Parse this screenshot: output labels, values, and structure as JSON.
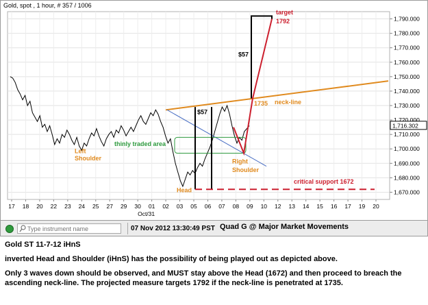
{
  "window": {
    "title": "Gold, spot , 1 hour, # 357 / 1006"
  },
  "chart_data": {
    "type": "line",
    "title": "Gold, spot , 1 hour, # 357 / 1006",
    "xlabel": "",
    "ylabel": "",
    "ylim": [
      1665,
      1795
    ],
    "yticks": [
      "1,670.000",
      "1,680.000",
      "1,690.000",
      "1,700.000",
      "1,710.000",
      "1,720.000",
      "1,730.000",
      "1,740.000",
      "1,750.000",
      "1,760.000",
      "1,770.000",
      "1,780.000",
      "1,790.000"
    ],
    "ytick_values": [
      1670,
      1680,
      1690,
      1700,
      1710,
      1720,
      1730,
      1740,
      1750,
      1760,
      1770,
      1780,
      1790
    ],
    "xticks": [
      "17",
      "18",
      "20",
      "22",
      "23",
      "24",
      "25",
      "27",
      "29",
      "30",
      "01",
      "02",
      "03",
      "05",
      "06",
      "07",
      "08",
      "09",
      "10",
      "12",
      "13",
      "14",
      "15",
      "16",
      "17",
      "19",
      "20"
    ],
    "x_month_label": "Oct/31",
    "current_price": "1,716.302",
    "series": [
      {
        "values": [
          1750,
          1749,
          1746,
          1741,
          1738,
          1734,
          1737,
          1730,
          1733,
          1725,
          1722,
          1719,
          1723,
          1715,
          1717,
          1712,
          1716,
          1710,
          1703,
          1707,
          1704,
          1710,
          1708,
          1713,
          1710,
          1706,
          1703,
          1708,
          1702,
          1699,
          1704,
          1702,
          1707,
          1711,
          1709,
          1714,
          1709,
          1705,
          1702,
          1707,
          1710,
          1712,
          1708,
          1713,
          1711,
          1716,
          1713,
          1709,
          1712,
          1715,
          1712,
          1716,
          1720,
          1723,
          1719,
          1717,
          1721,
          1725,
          1723,
          1727,
          1724,
          1719,
          1715,
          1709,
          1704,
          1707,
          1698,
          1690,
          1684,
          1678,
          1674,
          1679,
          1684,
          1682,
          1685,
          1683,
          1687,
          1690,
          1688,
          1693,
          1697,
          1701,
          1706,
          1712,
          1718,
          1724,
          1729,
          1726,
          1730,
          1724,
          1716,
          1709,
          1704,
          1708,
          1706,
          1712,
          1714,
          1716
        ]
      }
    ],
    "annotations": {
      "target_label": "target",
      "target_value": "1792",
      "measure_label": "$57",
      "measure_label_2": "$57",
      "neckline_label": "neck-line",
      "breakout_value": "1735",
      "thin_area_label": "thinly traded area",
      "left_shoulder_line1": "Left",
      "left_shoulder_line2": "Shoulder",
      "head_label": "Head",
      "right_shoulder_line1": "Right",
      "right_shoulder_line2": "Shoulder",
      "support_label": "critical support 1672",
      "support_value": 1672
    }
  },
  "status": {
    "search_placeholder": "Type instrument name",
    "timestamp": "07 Nov 2012 13:30:49 PST",
    "credit": "Quad G @ Major Market Movements"
  },
  "notes": {
    "title": "Gold ST 11-7-12 iHnS",
    "paragraph1": "inverted Head and Shoulder (iHnS) has the possibility of being played out as depicted above.",
    "paragraph2": "Only 3 waves down should be observed, and MUST stay above the Head (1672) and then proceed to breach the ascending neck-line. The projected measure targets 1792 if the neck-line is penetrated at 1735."
  },
  "colors": {
    "price_line": "#000000",
    "neckline": "#e08a1e",
    "projection": "#cc1f2e",
    "support": "#cc1f2e",
    "channel": "#4a6fc4",
    "thin_area": "#2e9a3e",
    "status_ok": "#2f9a3c"
  }
}
